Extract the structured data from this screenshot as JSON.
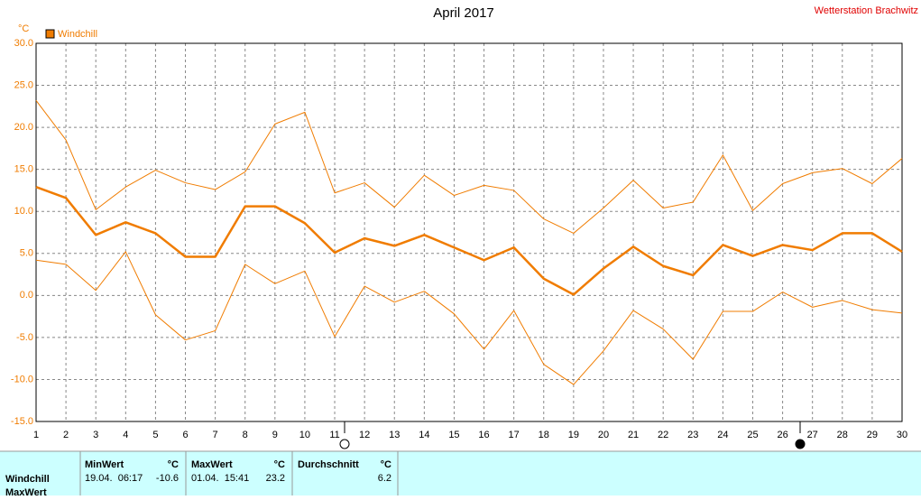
{
  "chart_data": {
    "type": "line",
    "title": "April 2017",
    "station": "Wetterstation Brachwitz",
    "y_label": "°C",
    "x": [
      1,
      2,
      3,
      4,
      5,
      6,
      7,
      8,
      9,
      10,
      11,
      12,
      13,
      14,
      15,
      16,
      17,
      18,
      19,
      20,
      21,
      22,
      23,
      24,
      25,
      26,
      27,
      28,
      29,
      30
    ],
    "xlim": [
      1,
      30
    ],
    "xticks": [
      1,
      2,
      3,
      4,
      5,
      6,
      7,
      8,
      9,
      10,
      11,
      12,
      13,
      14,
      15,
      16,
      17,
      18,
      19,
      20,
      21,
      22,
      23,
      24,
      25,
      26,
      27,
      28,
      29,
      30
    ],
    "ylim": [
      -15,
      30
    ],
    "yticks": [
      {
        "value": -15,
        "label": "-15.0"
      },
      {
        "value": -10,
        "label": "-10.0"
      },
      {
        "value": -5,
        "label": "-5.0"
      },
      {
        "value": 0,
        "label": "0.0"
      },
      {
        "value": 5,
        "label": "5.0"
      },
      {
        "value": 10,
        "label": "10.0"
      },
      {
        "value": 15,
        "label": "15.0"
      },
      {
        "value": 20,
        "label": "20.0"
      },
      {
        "value": 25,
        "label": "25.0"
      },
      {
        "value": 30,
        "label": "30.0"
      }
    ],
    "grid": true,
    "series": [
      {
        "color": "#f07c00",
        "width": 1,
        "values": [
          23.2,
          18.5,
          10.2,
          12.9,
          14.9,
          13.4,
          12.6,
          14.7,
          20.4,
          21.8,
          12.2,
          13.4,
          10.5,
          14.3,
          11.9,
          13.1,
          12.5,
          9.1,
          7.4,
          10.4,
          13.7,
          10.4,
          11.1,
          16.7,
          10.1,
          13.3,
          14.6,
          15.1,
          13.3,
          16.3
        ]
      },
      {
        "name": "Windchill",
        "color": "#f07c00",
        "width": 2.5,
        "values": [
          12.9,
          11.6,
          7.2,
          8.7,
          7.4,
          4.6,
          4.6,
          10.6,
          10.6,
          8.6,
          5.1,
          6.8,
          5.9,
          7.2,
          5.7,
          4.2,
          5.7,
          2.0,
          0.1,
          3.2,
          5.8,
          3.5,
          2.4,
          6.0,
          4.7,
          6.0,
          5.4,
          7.4,
          7.4,
          5.2
        ]
      },
      {
        "color": "#f07c00",
        "width": 1,
        "values": [
          4.2,
          3.7,
          0.6,
          5.2,
          -2.3,
          -5.3,
          -4.2,
          3.7,
          1.4,
          2.9,
          -4.9,
          1.1,
          -0.8,
          0.5,
          -2.2,
          -6.4,
          -1.8,
          -8.2,
          -10.6,
          -6.6,
          -1.8,
          -4.0,
          -7.6,
          -1.9,
          -1.9,
          0.4,
          -1.4,
          -0.6,
          -1.7,
          -2.1
        ]
      }
    ]
  },
  "summary_table": {
    "headers": {
      "min": "MinWert",
      "min_unit": "°C",
      "max": "MaxWert",
      "max_unit": "°C",
      "avg": "Durchschnitt",
      "avg_unit": "°C"
    },
    "rows": [
      {
        "label": "Windchill",
        "min_time": "19.04.  06:17",
        "min": "-10.6",
        "max_time": "01.04.  15:41",
        "max": "23.2",
        "avg": "6.2"
      },
      {
        "label": "MaxWert"
      }
    ]
  }
}
